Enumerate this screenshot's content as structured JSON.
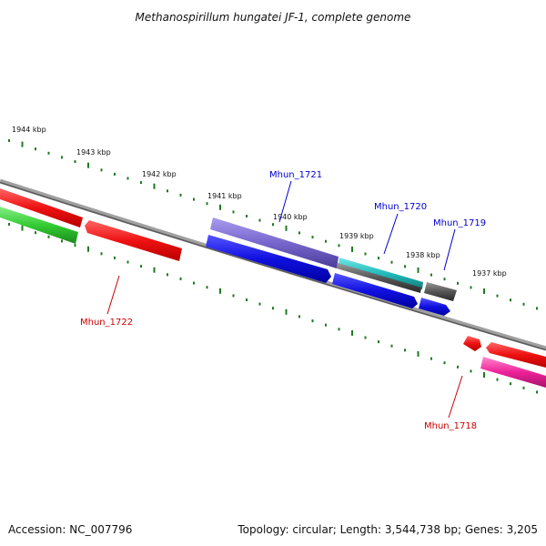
{
  "title": "Methanospirillum hungatei JF-1, complete genome",
  "footer": {
    "accession": "Accession: NC_007796",
    "summary": "Topology: circular; Length: 3,544,738 bp; Genes: 3,205"
  },
  "scale_labels": [
    "1944 kbp",
    "1943 kbp",
    "1942 kbp",
    "1941 kbp",
    "1940 kbp",
    "1939 kbp",
    "1938 kbp",
    "1937 kbp"
  ],
  "gene_labels": {
    "mhun_1721": "Mhun_1721",
    "mhun_1720": "Mhun_1720",
    "mhun_1719": "Mhun_1719",
    "mhun_1722": "Mhun_1722",
    "mhun_1718": "Mhun_1718"
  },
  "colors": {
    "backbone": "#808080",
    "scale_ticks": "#1e7a1e",
    "label_blue": "#0000cc",
    "label_red": "#cc0000",
    "red_gene": "#ee1111",
    "green_gene": "#33cc33",
    "blue_gene": "#1010e0",
    "purple_gene": "#7766cc",
    "cyan_gene": "#22bbbb",
    "gray_gene": "#555555",
    "pink_gene": "#ee2299"
  }
}
